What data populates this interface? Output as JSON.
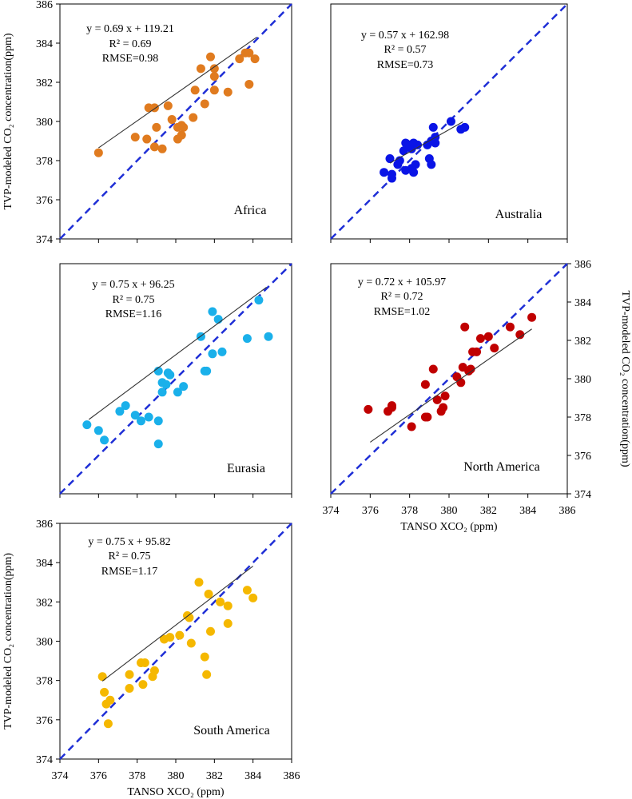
{
  "axis_labels": {
    "x": "TANSO XCO₂ (ppm)",
    "y": "TVP-modeled CO₂ concentration(ppm)"
  },
  "chart_data": [
    {
      "type": "scatter",
      "region": "Africa",
      "color": "#e07b1f",
      "xlim": [
        374,
        386
      ],
      "ylim": [
        374,
        386
      ],
      "equation": "y = 0.69  x + 119.21",
      "r2": "R² = 0.69",
      "rmse": "RMSE=0.98",
      "fit": {
        "slope": 0.69,
        "intercept": 119.21,
        "x_range": [
          376,
          384.2
        ]
      },
      "points": [
        [
          376,
          378.4
        ],
        [
          377.9,
          379.2
        ],
        [
          378.5,
          379.1
        ],
        [
          378.6,
          380.7
        ],
        [
          378.9,
          380.7
        ],
        [
          378.9,
          378.7
        ],
        [
          379.0,
          379.7
        ],
        [
          379.3,
          378.6
        ],
        [
          379.6,
          380.8
        ],
        [
          379.8,
          380.1
        ],
        [
          380.1,
          379.7
        ],
        [
          380.1,
          379.1
        ],
        [
          380.3,
          379.3
        ],
        [
          380.3,
          379.8
        ],
        [
          380.4,
          379.7
        ],
        [
          381.0,
          381.6
        ],
        [
          380.9,
          380.2
        ],
        [
          381.3,
          382.7
        ],
        [
          381.5,
          380.9
        ],
        [
          381.8,
          383.3
        ],
        [
          382.0,
          382.7
        ],
        [
          382.0,
          382.3
        ],
        [
          382.0,
          381.6
        ],
        [
          382.7,
          381.5
        ],
        [
          383.3,
          383.2
        ],
        [
          383.6,
          383.5
        ],
        [
          383.8,
          383.5
        ],
        [
          383.8,
          381.9
        ],
        [
          384.1,
          383.2
        ]
      ]
    },
    {
      "type": "scatter",
      "region": "Australia",
      "color": "#0a14e6",
      "xlim": [
        374,
        386
      ],
      "ylim": [
        374,
        386
      ],
      "equation": "y = 0.57  x + 162.98",
      "r2": "R² = 0.57",
      "rmse": "RMSE=0.73",
      "fit": {
        "slope": 0.57,
        "intercept": 162.98,
        "x_range": [
          377,
          380.7
        ]
      },
      "points": [
        [
          376.7,
          377.4
        ],
        [
          377.0,
          378.1
        ],
        [
          377.1,
          377.1
        ],
        [
          377.1,
          377.3
        ],
        [
          377.4,
          377.8
        ],
        [
          377.5,
          378.0
        ],
        [
          377.7,
          378.5
        ],
        [
          377.8,
          378.9
        ],
        [
          377.8,
          377.5
        ],
        [
          378.0,
          378.8
        ],
        [
          378.1,
          378.6
        ],
        [
          378.1,
          377.6
        ],
        [
          378.2,
          377.4
        ],
        [
          378.2,
          378.9
        ],
        [
          378.3,
          377.8
        ],
        [
          378.4,
          378.8
        ],
        [
          378.9,
          378.8
        ],
        [
          379.0,
          378.1
        ],
        [
          379.1,
          379.0
        ],
        [
          379.1,
          377.8
        ],
        [
          379.2,
          379.7
        ],
        [
          379.3,
          379.2
        ],
        [
          379.3,
          378.9
        ],
        [
          380.1,
          380.0
        ],
        [
          380.6,
          379.6
        ],
        [
          380.8,
          379.7
        ]
      ]
    },
    {
      "type": "scatter",
      "region": "Eurasia",
      "color": "#1ab0ea",
      "xlim": [
        374,
        386
      ],
      "ylim": [
        374,
        386
      ],
      "equation": "y = 0.75  x + 96.25",
      "r2": "R² = 0.75",
      "rmse": "RMSE=1.16",
      "fit": {
        "slope": 0.75,
        "intercept": 96.25,
        "x_range": [
          375.5,
          384.7
        ]
      },
      "points": [
        [
          375.4,
          377.6
        ],
        [
          376.0,
          377.3
        ],
        [
          376.3,
          376.8
        ],
        [
          377.1,
          378.3
        ],
        [
          377.4,
          378.6
        ],
        [
          377.9,
          378.1
        ],
        [
          378.2,
          377.8
        ],
        [
          378.6,
          378.0
        ],
        [
          379.1,
          376.6
        ],
        [
          379.1,
          377.8
        ],
        [
          379.1,
          380.4
        ],
        [
          379.3,
          379.8
        ],
        [
          379.3,
          379.3
        ],
        [
          379.5,
          379.7
        ],
        [
          379.6,
          380.3
        ],
        [
          379.7,
          380.2
        ],
        [
          380.1,
          379.3
        ],
        [
          380.4,
          379.6
        ],
        [
          381.3,
          382.2
        ],
        [
          381.5,
          380.4
        ],
        [
          381.6,
          380.4
        ],
        [
          381.9,
          381.3
        ],
        [
          381.9,
          383.5
        ],
        [
          382.2,
          383.1
        ],
        [
          382.4,
          381.4
        ],
        [
          383.7,
          382.1
        ],
        [
          384.3,
          384.1
        ],
        [
          384.8,
          382.2
        ]
      ]
    },
    {
      "type": "scatter",
      "region": "North America",
      "color": "#c00000",
      "xlim": [
        374,
        386
      ],
      "ylim": [
        374,
        386
      ],
      "equation": "y = 0.72  x + 105.97",
      "r2": "R² = 0.72",
      "rmse": "RMSE=1.02",
      "fit": {
        "slope": 0.72,
        "intercept": 105.97,
        "x_range": [
          376,
          384.2
        ]
      },
      "points": [
        [
          375.9,
          378.4
        ],
        [
          376.9,
          378.3
        ],
        [
          377.1,
          378.5
        ],
        [
          377.1,
          378.6
        ],
        [
          378.1,
          377.5
        ],
        [
          378.8,
          379.7
        ],
        [
          378.8,
          378.0
        ],
        [
          378.9,
          378.0
        ],
        [
          379.2,
          380.5
        ],
        [
          379.4,
          378.9
        ],
        [
          379.6,
          378.3
        ],
        [
          379.7,
          378.5
        ],
        [
          379.8,
          379.1
        ],
        [
          380.4,
          380.1
        ],
        [
          380.6,
          379.8
        ],
        [
          380.7,
          380.6
        ],
        [
          380.8,
          382.7
        ],
        [
          381.0,
          380.4
        ],
        [
          381.1,
          380.5
        ],
        [
          381.2,
          381.4
        ],
        [
          381.4,
          381.4
        ],
        [
          381.6,
          382.1
        ],
        [
          382.0,
          382.2
        ],
        [
          382.3,
          381.6
        ],
        [
          383.1,
          382.7
        ],
        [
          383.6,
          382.3
        ],
        [
          384.2,
          383.2
        ]
      ]
    },
    {
      "type": "scatter",
      "region": "South America",
      "color": "#f5b800",
      "xlim": [
        374,
        386
      ],
      "ylim": [
        374,
        386
      ],
      "equation": "y = 0.75  x + 95.82",
      "r2": "R² = 0.75",
      "rmse": "RMSE=1.17",
      "fit": {
        "slope": 0.75,
        "intercept": 95.82,
        "x_range": [
          376.2,
          384
        ]
      },
      "points": [
        [
          376.2,
          378.2
        ],
        [
          376.3,
          377.4
        ],
        [
          376.4,
          376.8
        ],
        [
          376.5,
          375.8
        ],
        [
          376.6,
          377.0
        ],
        [
          377.6,
          378.3
        ],
        [
          377.6,
          377.6
        ],
        [
          378.2,
          378.9
        ],
        [
          378.3,
          377.8
        ],
        [
          378.4,
          378.9
        ],
        [
          378.8,
          378.2
        ],
        [
          378.9,
          378.5
        ],
        [
          379.4,
          380.1
        ],
        [
          379.7,
          380.2
        ],
        [
          380.2,
          380.3
        ],
        [
          380.6,
          381.3
        ],
        [
          380.7,
          381.2
        ],
        [
          380.8,
          379.9
        ],
        [
          381.2,
          383.0
        ],
        [
          381.5,
          379.2
        ],
        [
          381.6,
          378.3
        ],
        [
          381.7,
          382.4
        ],
        [
          381.8,
          380.5
        ],
        [
          382.3,
          382.0
        ],
        [
          382.7,
          381.8
        ],
        [
          382.7,
          380.9
        ],
        [
          383.7,
          382.6
        ],
        [
          384.0,
          382.2
        ]
      ]
    }
  ]
}
